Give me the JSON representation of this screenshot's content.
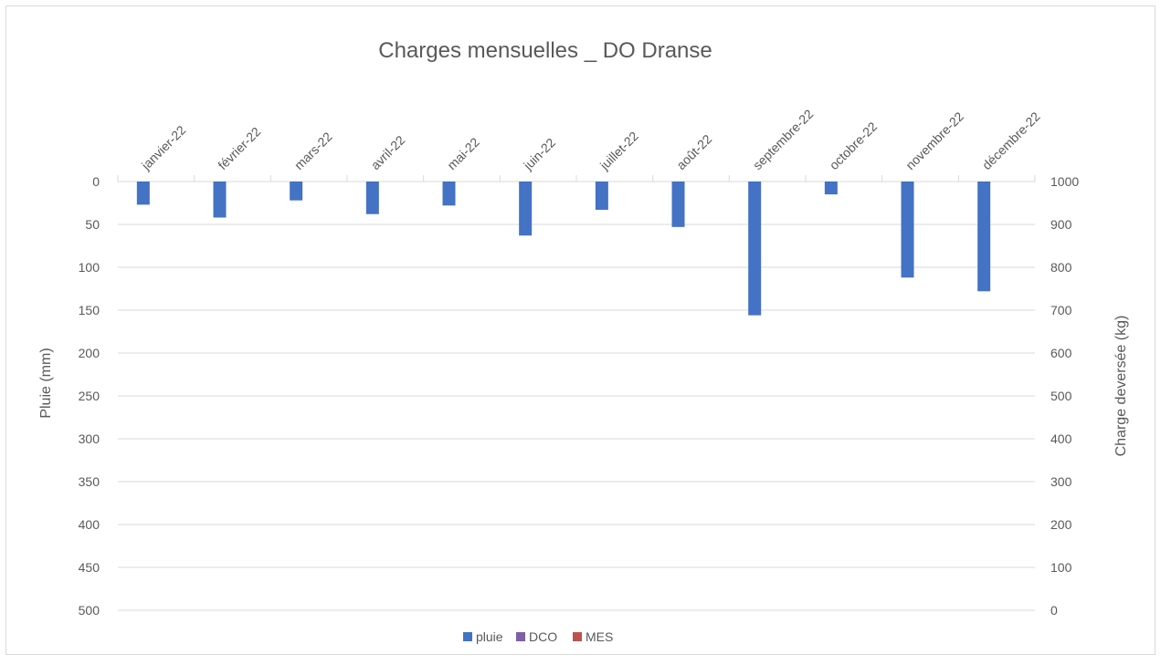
{
  "chart_data": {
    "type": "bar",
    "title": "Charges mensuelles _ DO Dranse",
    "categories": [
      "janvier-22",
      "février-22",
      "mars-22",
      "avril-22",
      "mai-22",
      "juin-22",
      "juillet-22",
      "août-22",
      "septembre-22",
      "octobre-22",
      "novembre-22",
      "décembre-22"
    ],
    "series": [
      {
        "name": "pluie",
        "axis": "left",
        "color": "#4472C4",
        "values": [
          27,
          42,
          22,
          38,
          28,
          63,
          33,
          53,
          156,
          15,
          112,
          128
        ]
      },
      {
        "name": "DCO",
        "axis": "right",
        "color": "#7F5FA8",
        "values": [
          0,
          0,
          0,
          0,
          0,
          0,
          0,
          0,
          0,
          0,
          0,
          0
        ]
      },
      {
        "name": "MES",
        "axis": "right",
        "color": "#C0504D",
        "values": [
          0,
          0,
          0,
          0,
          0,
          0,
          0,
          0,
          0,
          0,
          0,
          0
        ]
      }
    ],
    "y_left": {
      "label": "Pluie (mm)",
      "min": 0,
      "max": 500,
      "step": 50,
      "inverted": true
    },
    "y_right": {
      "label": "Charge deversée (kg)",
      "min": 0,
      "max": 1000,
      "step": 100
    },
    "x_axis_position": "top",
    "grid": true,
    "legend": "bottom"
  }
}
